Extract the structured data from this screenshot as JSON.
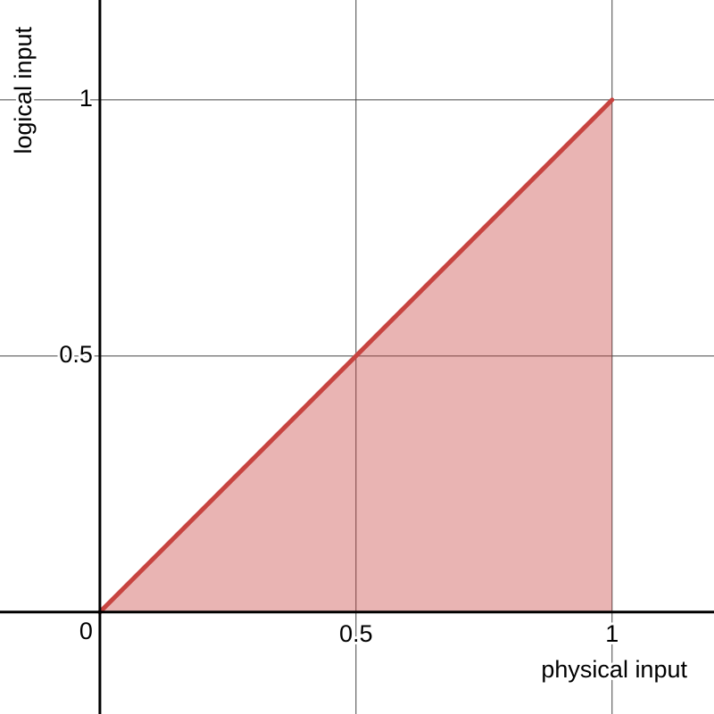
{
  "chart_data": {
    "type": "line",
    "x_label": "physical input",
    "y_label": "logical input",
    "x": [
      0,
      1
    ],
    "series": [
      {
        "color": "#c74440",
        "values": [
          0,
          1
        ]
      }
    ],
    "fill_under": true,
    "xlim": [
      -0.195,
      1.199
    ],
    "ylim": [
      -0.199,
      1.195
    ],
    "xticks": [
      0,
      0.5,
      1
    ],
    "yticks": [
      0.5,
      1
    ],
    "grid": true
  }
}
